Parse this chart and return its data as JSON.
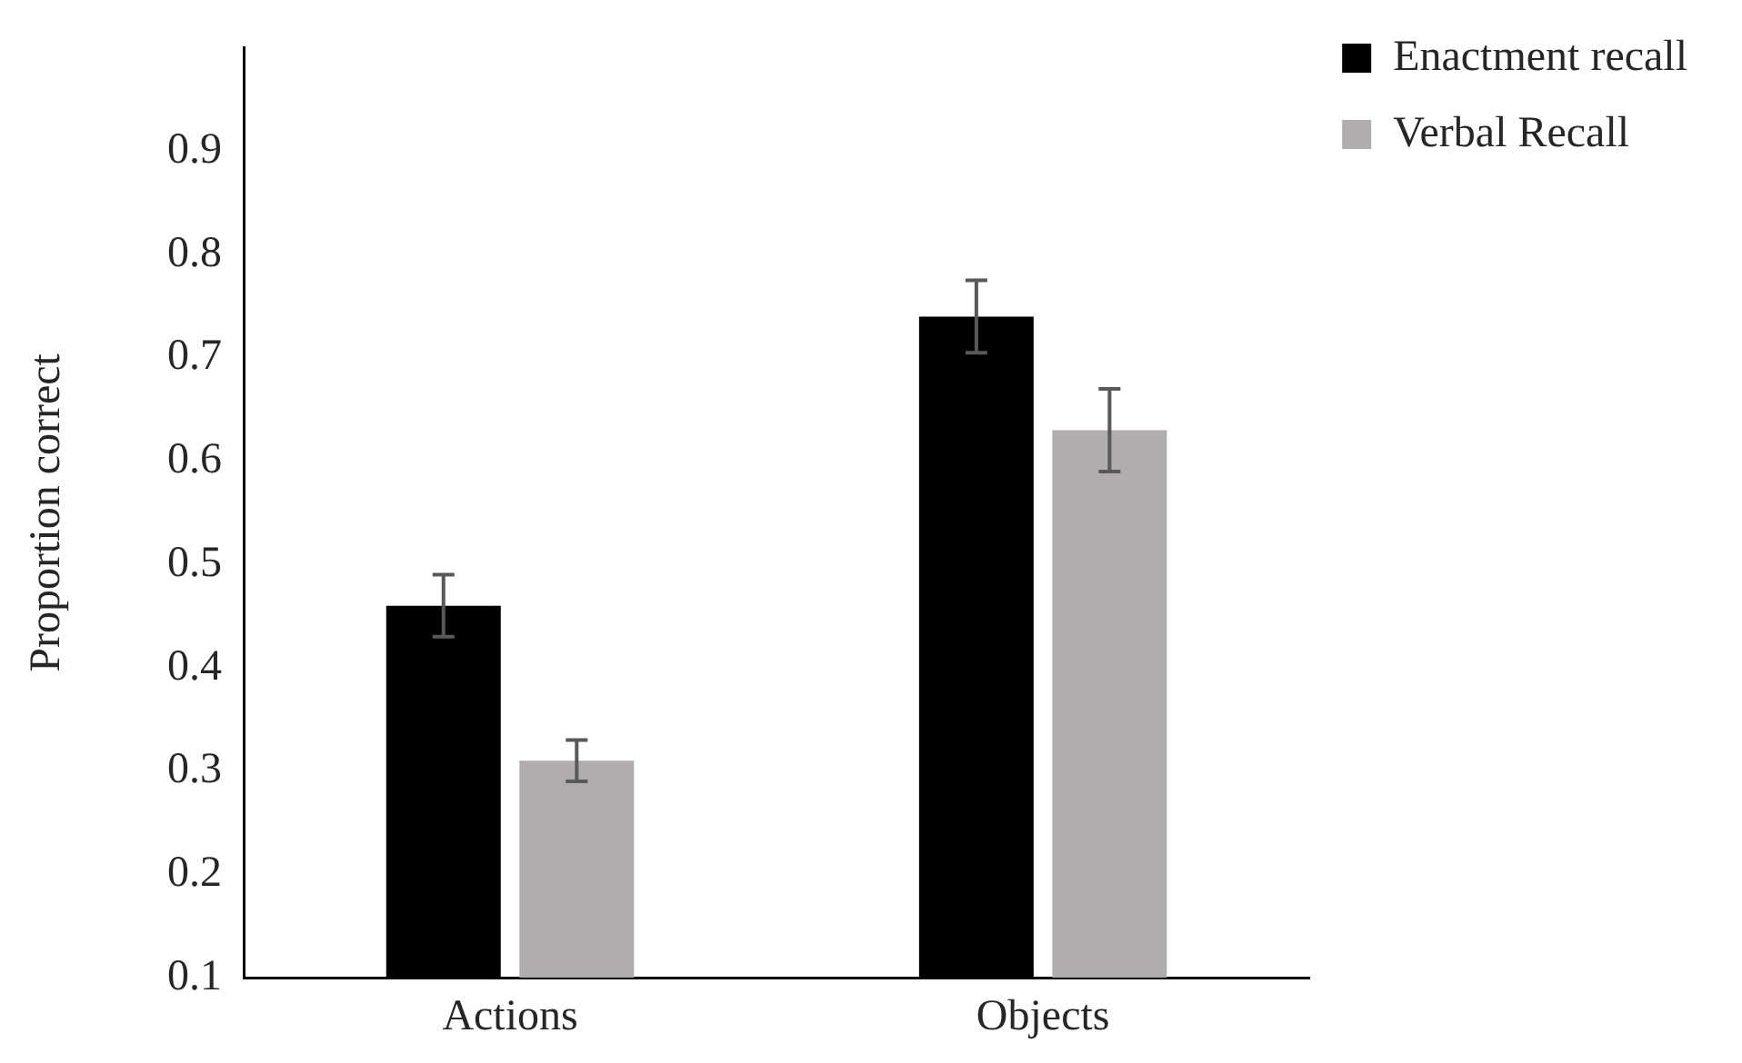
{
  "chart_data": {
    "type": "bar",
    "ylabel": "Proportion correct",
    "categories": [
      "Actions",
      "Objects"
    ],
    "series": [
      {
        "name": "Enactment recall",
        "color": "#000000",
        "values": [
          0.46,
          0.74
        ],
        "errors": [
          0.03,
          0.035
        ]
      },
      {
        "name": "Verbal Recall",
        "color": "#b0adac",
        "values": [
          0.31,
          0.63
        ],
        "errors": [
          0.02,
          0.04
        ]
      }
    ],
    "ylim": [
      0.1,
      1.0
    ],
    "yticks": [
      0.1,
      0.2,
      0.3,
      0.4,
      0.5,
      0.6,
      0.7,
      0.8,
      0.9
    ],
    "grid": false,
    "legend": "top right"
  }
}
